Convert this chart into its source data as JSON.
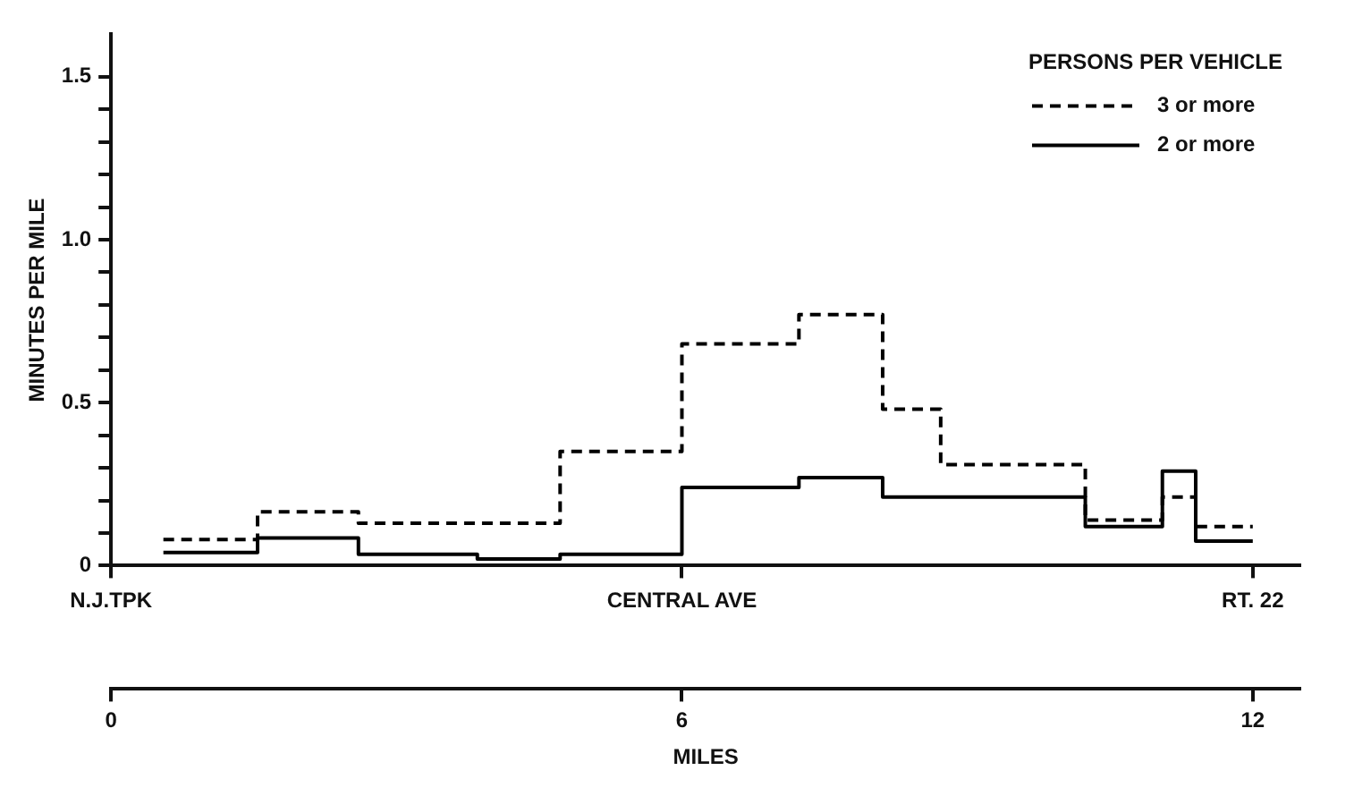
{
  "chart_data": {
    "type": "step",
    "ylabel": "MINUTES PER MILE",
    "xlabel": "MILES",
    "legend_title": "PERSONS PER VEHICLE",
    "annotations": [
      "N.J.TPK",
      "CENTRAL AVE",
      "RT. 22"
    ],
    "x": [
      0.55,
      1.54,
      2.6,
      3.85,
      4.72,
      6,
      7.23,
      8.11,
      8.72,
      10.24,
      11.05,
      11.4,
      12
    ],
    "series": [
      {
        "name": "3 or more",
        "color": "#000000",
        "line_style": "dashed",
        "values": [
          0.08,
          0.165,
          0.13,
          0.13,
          0.35,
          0.68,
          0.77,
          0.48,
          0.31,
          0.14,
          0.21,
          0.12,
          0.12
        ]
      },
      {
        "name": "2 or more",
        "color": "#000000",
        "line_style": "solid",
        "values": [
          0.04,
          0.085,
          0.035,
          0.02,
          0.035,
          0.24,
          0.27,
          0.21,
          0.21,
          0.12,
          0.29,
          0.075,
          0.075
        ]
      }
    ],
    "xlim": [
      0,
      12.5
    ],
    "xticks": [
      0,
      6,
      12
    ],
    "ylim": [
      0,
      1.63
    ],
    "yticks": [
      0,
      {
        "value": 0.1,
        "label": null
      },
      {
        "value": 0.2,
        "label": null
      },
      {
        "value": 0.3,
        "label": null
      },
      {
        "value": 0.4,
        "label": null
      },
      {
        "value": 0.5,
        "label": "0.5"
      },
      {
        "value": 0.6,
        "label": null
      },
      {
        "value": 0.7,
        "label": null
      },
      {
        "value": 0.8,
        "label": null
      },
      {
        "value": 0.9,
        "label": null
      },
      {
        "value": 1.0,
        "label": "1.0"
      },
      {
        "value": 1.1,
        "label": null
      },
      {
        "value": 1.2,
        "label": null
      },
      {
        "value": 1.3,
        "label": null
      },
      {
        "value": 1.4,
        "label": null
      },
      {
        "value": 1.5,
        "label": "1.5"
      }
    ],
    "grid": false,
    "legend": "top right"
  }
}
